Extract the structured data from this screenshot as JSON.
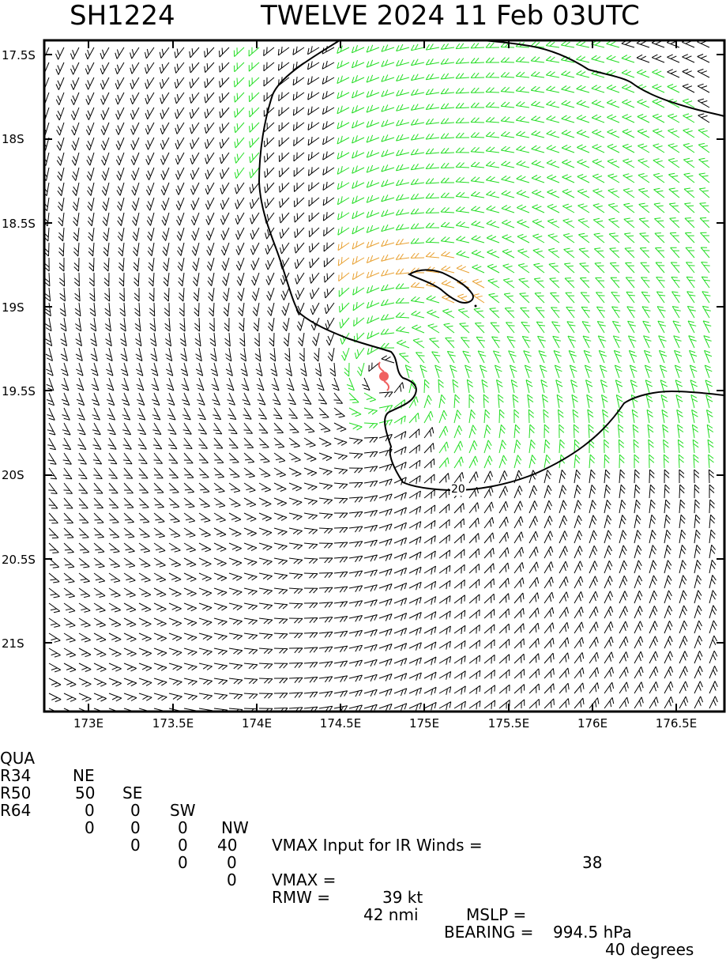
{
  "header": {
    "storm_id": "SH1224",
    "title": "TWELVE 2024 11 Feb 03UTC"
  },
  "map": {
    "lat_labels": [
      "17.5S",
      "18S",
      "18.5S",
      "19S",
      "19.5S",
      "20S",
      "20.5S",
      "21S"
    ],
    "lon_labels": [
      "173E",
      "173.5E",
      "174E",
      "174.5E",
      "175E",
      "175.5E",
      "176E",
      "176.5E"
    ],
    "contour_label": "20",
    "colors": {
      "weak_barbs": "#000000",
      "gale_barbs": "#22dd22",
      "storm_barbs": "#e8a030",
      "center_symbol": "#f06060"
    },
    "center_symbol_icon": "tropical-storm-icon"
  },
  "info": {
    "quadrant_header": {
      "label": "QUA",
      "ne": "NE",
      "se": "SE",
      "sw": "SW",
      "nw": "NW"
    },
    "r34": {
      "label": "R34",
      "ne": "50",
      "se": "0",
      "sw": "0",
      "nw": "40"
    },
    "r50": {
      "label": "R50",
      "ne": "0",
      "se": "0",
      "sw": "0",
      "nw": "0"
    },
    "r64": {
      "label": "R64",
      "ne": "0",
      "se": "0",
      "sw": "0",
      "nw": "0"
    },
    "vmax_input_text": "VMAX Input for IR Winds =",
    "vmax_input_value": "38",
    "vmax_label": "VMAX =",
    "vmax_value": "39 kt",
    "mslp_label": "MSLP =",
    "mslp_value": "994.5 hPa",
    "rmw_label": "RMW =",
    "rmw_value": "42 nmi",
    "bearing_label": "BEARING =",
    "bearing_value": "40 degrees"
  }
}
